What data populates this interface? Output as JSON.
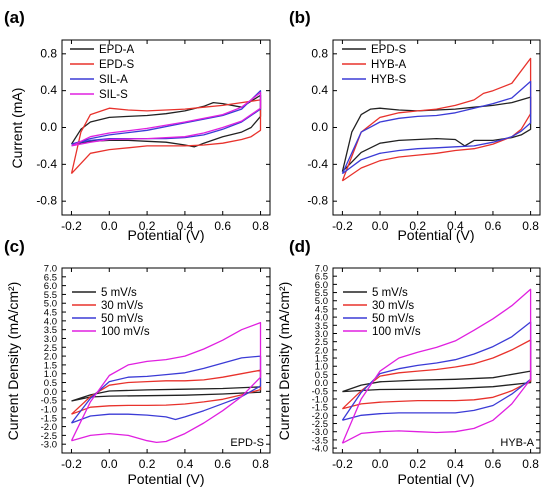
{
  "chart_data": [
    {
      "type": "line",
      "panel_label": "(a)",
      "xlabel": "Potential (V)",
      "ylabel": "Current (mA)",
      "xlim": [
        -0.25,
        0.85
      ],
      "ylim": [
        -0.95,
        0.95
      ],
      "xticks": [
        "-0.2",
        "0.0",
        "0.2",
        "0.4",
        "0.6",
        "0.8"
      ],
      "xtick_values": [
        -0.2,
        0.0,
        0.2,
        0.4,
        0.6,
        0.8
      ],
      "yticks": [
        "-0.8",
        "-0.4",
        "0.0",
        "0.4",
        "0.8"
      ],
      "ytick_values": [
        -0.8,
        -0.4,
        0.0,
        0.4,
        0.8
      ],
      "legend": "top-left",
      "series": [
        {
          "name": "EPD-A",
          "color": "#222222",
          "x": [
            -0.2,
            -0.15,
            -0.1,
            0.0,
            0.1,
            0.2,
            0.3,
            0.4,
            0.5,
            0.55,
            0.6,
            0.7,
            0.8,
            0.8,
            0.75,
            0.7,
            0.6,
            0.5,
            0.45,
            0.4,
            0.3,
            0.2,
            0.1,
            0.0,
            -0.1,
            -0.2
          ],
          "y": [
            -0.18,
            -0.02,
            0.06,
            0.11,
            0.12,
            0.13,
            0.15,
            0.18,
            0.23,
            0.27,
            0.26,
            0.22,
            0.35,
            0.12,
            0.0,
            -0.05,
            -0.1,
            -0.17,
            -0.21,
            -0.19,
            -0.16,
            -0.15,
            -0.14,
            -0.14,
            -0.15,
            -0.18
          ]
        },
        {
          "name": "EPD-S",
          "color": "#e8322c",
          "x": [
            -0.2,
            -0.15,
            -0.1,
            0.0,
            0.1,
            0.2,
            0.3,
            0.4,
            0.5,
            0.6,
            0.7,
            0.8,
            0.8,
            0.75,
            0.7,
            0.6,
            0.5,
            0.4,
            0.3,
            0.2,
            0.1,
            0.0,
            -0.1,
            -0.2
          ],
          "y": [
            -0.5,
            -0.05,
            0.14,
            0.21,
            0.19,
            0.18,
            0.19,
            0.2,
            0.22,
            0.24,
            0.27,
            0.3,
            -0.03,
            -0.1,
            -0.13,
            -0.17,
            -0.19,
            -0.2,
            -0.2,
            -0.2,
            -0.22,
            -0.24,
            -0.28,
            -0.5
          ]
        },
        {
          "name": "SIL-A",
          "color": "#3b3bd6",
          "x": [
            -0.2,
            -0.1,
            0.0,
            0.2,
            0.4,
            0.6,
            0.7,
            0.8,
            0.8,
            0.7,
            0.6,
            0.5,
            0.4,
            0.3,
            0.2,
            0.0,
            -0.1,
            -0.2
          ],
          "y": [
            -0.18,
            -0.12,
            -0.08,
            -0.03,
            0.05,
            0.13,
            0.2,
            0.4,
            0.2,
            0.06,
            -0.02,
            -0.08,
            -0.11,
            -0.12,
            -0.12,
            -0.12,
            -0.14,
            -0.18
          ]
        },
        {
          "name": "SIL-S",
          "color": "#e020e0",
          "x": [
            -0.2,
            -0.1,
            0.0,
            0.2,
            0.4,
            0.6,
            0.7,
            0.8,
            0.8,
            0.7,
            0.6,
            0.5,
            0.4,
            0.2,
            0.0,
            -0.1,
            -0.2
          ],
          "y": [
            -0.2,
            -0.1,
            -0.06,
            -0.01,
            0.06,
            0.14,
            0.22,
            0.38,
            0.21,
            0.07,
            0.0,
            -0.06,
            -0.1,
            -0.12,
            -0.13,
            -0.16,
            -0.2
          ]
        }
      ]
    },
    {
      "type": "line",
      "panel_label": "(b)",
      "xlabel": "Potential (V)",
      "ylabel": "",
      "xlim": [
        -0.25,
        0.85
      ],
      "ylim": [
        -0.95,
        0.95
      ],
      "xticks": [
        "-0.2",
        "0.0",
        "0.2",
        "0.4",
        "0.6",
        "0.8"
      ],
      "xtick_values": [
        -0.2,
        0.0,
        0.2,
        0.4,
        0.6,
        0.8
      ],
      "yticks": [
        "-0.8",
        "-0.4",
        "0.0",
        "0.4",
        "0.8"
      ],
      "ytick_values": [
        -0.8,
        -0.4,
        0.0,
        0.4,
        0.8
      ],
      "legend": "top-left",
      "series": [
        {
          "name": "EPD-S",
          "color": "#222222",
          "x": [
            -0.2,
            -0.15,
            -0.1,
            -0.05,
            0.0,
            0.1,
            0.2,
            0.3,
            0.4,
            0.5,
            0.6,
            0.7,
            0.8,
            0.8,
            0.75,
            0.7,
            0.6,
            0.5,
            0.45,
            0.4,
            0.3,
            0.2,
            0.1,
            0.0,
            -0.1,
            -0.2
          ],
          "y": [
            -0.48,
            -0.05,
            0.14,
            0.2,
            0.21,
            0.19,
            0.18,
            0.19,
            0.2,
            0.22,
            0.24,
            0.27,
            0.33,
            -0.02,
            -0.08,
            -0.11,
            -0.14,
            -0.14,
            -0.2,
            -0.13,
            -0.12,
            -0.13,
            -0.14,
            -0.17,
            -0.27,
            -0.48
          ]
        },
        {
          "name": "HYB-A",
          "color": "#e8322c",
          "x": [
            -0.2,
            -0.1,
            0.0,
            0.1,
            0.2,
            0.3,
            0.4,
            0.5,
            0.55,
            0.6,
            0.7,
            0.8,
            0.8,
            0.75,
            0.7,
            0.6,
            0.5,
            0.4,
            0.3,
            0.2,
            0.1,
            0.0,
            -0.1,
            -0.2
          ],
          "y": [
            -0.58,
            -0.05,
            0.11,
            0.16,
            0.18,
            0.2,
            0.24,
            0.3,
            0.37,
            0.4,
            0.48,
            0.75,
            0.15,
            -0.02,
            -0.1,
            -0.18,
            -0.23,
            -0.25,
            -0.28,
            -0.3,
            -0.32,
            -0.36,
            -0.44,
            -0.58
          ]
        },
        {
          "name": "HYB-S",
          "color": "#3b3bd6",
          "x": [
            -0.2,
            -0.1,
            0.0,
            0.1,
            0.2,
            0.3,
            0.4,
            0.5,
            0.6,
            0.7,
            0.8,
            0.8,
            0.75,
            0.7,
            0.6,
            0.5,
            0.4,
            0.3,
            0.2,
            0.1,
            0.0,
            -0.1,
            -0.2
          ],
          "y": [
            -0.5,
            -0.05,
            0.06,
            0.1,
            0.12,
            0.13,
            0.16,
            0.21,
            0.26,
            0.32,
            0.5,
            0.05,
            -0.04,
            -0.1,
            -0.16,
            -0.2,
            -0.21,
            -0.22,
            -0.23,
            -0.25,
            -0.28,
            -0.35,
            -0.5
          ]
        }
      ]
    },
    {
      "type": "line",
      "panel_label": "(c)",
      "xlabel": "Potential (V)",
      "ylabel": "Current Density (mA/cm²)",
      "annotation": "EPD-S",
      "xlim": [
        -0.25,
        0.85
      ],
      "ylim": [
        -3.5,
        7.0
      ],
      "xticks": [
        "-0.2",
        "0.0",
        "0.2",
        "0.4",
        "0.6",
        "0.8"
      ],
      "xtick_values": [
        -0.2,
        0.0,
        0.2,
        0.4,
        0.6,
        0.8
      ],
      "yticks": [
        "-3.0",
        "-2.5",
        "-2.0",
        "-1.5",
        "-1.0",
        "-0.5",
        "0.0",
        "0.5",
        "1.0",
        "1.5",
        "2.0",
        "2.5",
        "3.0",
        "3.5",
        "4.0",
        "4.5",
        "5.0",
        "5.5",
        "6.0",
        "6.5",
        "7.0"
      ],
      "ytick_values": [
        -3.0,
        -2.5,
        -2.0,
        -1.5,
        -1.0,
        -0.5,
        0.0,
        0.5,
        1.0,
        1.5,
        2.0,
        2.5,
        3.0,
        3.5,
        4.0,
        4.5,
        5.0,
        5.5,
        6.0,
        6.5,
        7.0
      ],
      "legend": "top-left",
      "series": [
        {
          "name": "5 mV/s",
          "color": "#222222",
          "x": [
            -0.2,
            -0.1,
            0.0,
            0.2,
            0.4,
            0.6,
            0.8,
            0.8,
            0.6,
            0.4,
            0.2,
            0.0,
            -0.1,
            -0.2
          ],
          "y": [
            -0.55,
            -0.2,
            0.02,
            0.08,
            0.12,
            0.16,
            0.25,
            -0.05,
            -0.15,
            -0.22,
            -0.25,
            -0.27,
            -0.32,
            -0.55
          ]
        },
        {
          "name": "30 mV/s",
          "color": "#e8322c",
          "x": [
            -0.2,
            -0.1,
            0.0,
            0.1,
            0.2,
            0.3,
            0.4,
            0.5,
            0.6,
            0.7,
            0.8,
            0.8,
            0.7,
            0.6,
            0.5,
            0.4,
            0.3,
            0.2,
            0.1,
            0.0,
            -0.1,
            -0.2
          ],
          "y": [
            -1.3,
            -0.3,
            0.35,
            0.5,
            0.55,
            0.6,
            0.6,
            0.65,
            0.8,
            1.0,
            1.2,
            0.1,
            -0.2,
            -0.45,
            -0.6,
            -0.72,
            -0.78,
            -0.8,
            -0.8,
            -0.82,
            -0.9,
            -1.3
          ]
        },
        {
          "name": "50 mV/s",
          "color": "#3b3bd6",
          "x": [
            -0.2,
            -0.1,
            0.0,
            0.1,
            0.2,
            0.3,
            0.4,
            0.5,
            0.6,
            0.7,
            0.8,
            0.8,
            0.7,
            0.6,
            0.5,
            0.4,
            0.35,
            0.3,
            0.2,
            0.1,
            0.0,
            -0.1,
            -0.2
          ],
          "y": [
            -1.8,
            -0.4,
            0.55,
            0.8,
            0.85,
            0.95,
            1.05,
            1.3,
            1.6,
            1.9,
            2.0,
            0.3,
            -0.3,
            -0.7,
            -1.1,
            -1.45,
            -1.6,
            -1.45,
            -1.35,
            -1.3,
            -1.3,
            -1.4,
            -1.8
          ]
        },
        {
          "name": "100 mV/s",
          "color": "#e020e0",
          "x": [
            -0.2,
            -0.1,
            0.0,
            0.1,
            0.2,
            0.3,
            0.4,
            0.5,
            0.6,
            0.7,
            0.8,
            0.8,
            0.7,
            0.6,
            0.5,
            0.4,
            0.3,
            0.25,
            0.2,
            0.1,
            0.0,
            -0.1,
            -0.2
          ],
          "y": [
            -2.8,
            -0.6,
            0.9,
            1.5,
            1.7,
            1.8,
            2.0,
            2.4,
            2.9,
            3.5,
            3.9,
            0.8,
            -0.3,
            -1.1,
            -1.8,
            -2.4,
            -2.85,
            -2.9,
            -2.8,
            -2.5,
            -2.4,
            -2.5,
            -2.8
          ]
        }
      ]
    },
    {
      "type": "line",
      "panel_label": "(d)",
      "xlabel": "Potential (V)",
      "ylabel": "Current Density (mA/cm²)",
      "annotation": "HYB-A",
      "xlim": [
        -0.25,
        0.85
      ],
      "ylim": [
        -4.3,
        7.0
      ],
      "xticks": [
        "-0.2",
        "0.0",
        "0.2",
        "0.4",
        "0.6",
        "0.8"
      ],
      "xtick_values": [
        -0.2,
        0.0,
        0.2,
        0.4,
        0.6,
        0.8
      ],
      "yticks": [
        "-4.0",
        "-3.5",
        "-3.0",
        "-2.5",
        "-2.0",
        "-1.5",
        "-1.0",
        "-0.5",
        "0.0",
        "0.5",
        "1.0",
        "1.5",
        "2.0",
        "2.5",
        "3.0",
        "3.5",
        "4.0",
        "4.5",
        "5.0",
        "5.5",
        "6.0",
        "6.5",
        "7.0"
      ],
      "ytick_values": [
        -4.0,
        -3.5,
        -3.0,
        -2.5,
        -2.0,
        -1.5,
        -1.0,
        -0.5,
        0.0,
        0.5,
        1.0,
        1.5,
        2.0,
        2.5,
        3.0,
        3.5,
        4.0,
        4.5,
        5.0,
        5.5,
        6.0,
        6.5,
        7.0
      ],
      "legend": "top-left",
      "series": [
        {
          "name": "5 mV/s",
          "color": "#222222",
          "x": [
            -0.2,
            -0.1,
            0.0,
            0.2,
            0.4,
            0.6,
            0.8,
            0.8,
            0.6,
            0.4,
            0.2,
            0.0,
            -0.1,
            -0.2
          ],
          "y": [
            -0.55,
            -0.15,
            0.05,
            0.15,
            0.2,
            0.3,
            0.7,
            0.0,
            -0.25,
            -0.35,
            -0.4,
            -0.42,
            -0.48,
            -0.55
          ]
        },
        {
          "name": "30 mV/s",
          "color": "#e8322c",
          "x": [
            -0.2,
            -0.1,
            0.0,
            0.1,
            0.2,
            0.3,
            0.4,
            0.5,
            0.6,
            0.7,
            0.8,
            0.8,
            0.7,
            0.6,
            0.5,
            0.4,
            0.3,
            0.2,
            0.1,
            0.0,
            -0.1,
            -0.2
          ],
          "y": [
            -1.6,
            -0.5,
            0.4,
            0.6,
            0.7,
            0.8,
            0.95,
            1.15,
            1.5,
            2.0,
            2.6,
            0.1,
            -0.5,
            -0.9,
            -1.05,
            -1.1,
            -1.1,
            -1.1,
            -1.15,
            -1.2,
            -1.3,
            -1.6
          ]
        },
        {
          "name": "50 mV/s",
          "color": "#3b3bd6",
          "x": [
            -0.2,
            -0.1,
            0.0,
            0.1,
            0.2,
            0.3,
            0.4,
            0.5,
            0.6,
            0.7,
            0.8,
            0.8,
            0.7,
            0.6,
            0.5,
            0.4,
            0.3,
            0.2,
            0.1,
            0.0,
            -0.1,
            -0.2
          ],
          "y": [
            -2.3,
            -0.6,
            0.55,
            0.85,
            1.05,
            1.2,
            1.4,
            1.75,
            2.2,
            2.8,
            3.7,
            0.2,
            -0.7,
            -1.4,
            -1.7,
            -1.85,
            -1.85,
            -1.85,
            -1.85,
            -1.9,
            -2.0,
            -2.3
          ]
        },
        {
          "name": "100 mV/s",
          "color": "#e020e0",
          "x": [
            -0.2,
            -0.1,
            0.0,
            0.1,
            0.2,
            0.3,
            0.4,
            0.5,
            0.6,
            0.7,
            0.8,
            0.8,
            0.7,
            0.6,
            0.5,
            0.4,
            0.3,
            0.2,
            0.1,
            0.0,
            -0.1,
            -0.2
          ],
          "y": [
            -3.7,
            -1.0,
            0.7,
            1.5,
            1.85,
            2.15,
            2.55,
            3.2,
            3.9,
            4.7,
            5.7,
            0.2,
            -1.3,
            -2.3,
            -2.8,
            -3.0,
            -3.05,
            -3.0,
            -2.95,
            -3.0,
            -3.1,
            -3.7
          ]
        }
      ]
    }
  ]
}
